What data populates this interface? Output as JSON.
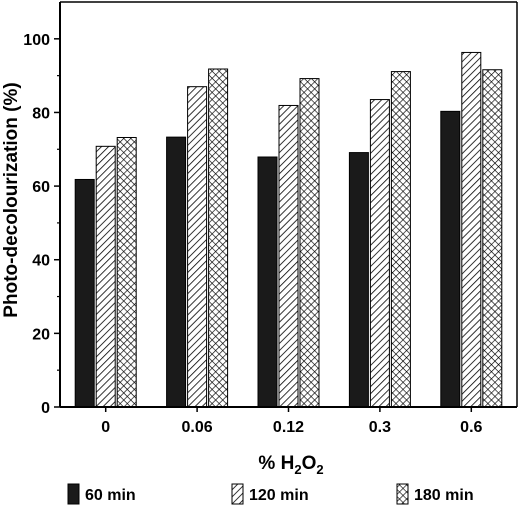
{
  "chart_data": {
    "type": "bar",
    "ylabel": "Photo-decolourization (%)",
    "xlabel": {
      "prefix": "% H",
      "sub1": "2",
      "mid": "O",
      "sub2": "2"
    },
    "categories": [
      "0",
      "0.06",
      "0.12",
      "0.3",
      "0.6"
    ],
    "ylim": [
      0,
      110
    ],
    "yticks": [
      0,
      20,
      40,
      60,
      80,
      100
    ],
    "ytick_labels": [
      "0",
      "20",
      "40",
      "60",
      "80",
      "100"
    ],
    "series": [
      {
        "name": "60 min",
        "pattern": "solid",
        "values": [
          61.8,
          73.3,
          67.9,
          69.1,
          80.3
        ]
      },
      {
        "name": "120 min",
        "pattern": "diagonal-hatch",
        "values": [
          70.8,
          87.0,
          81.9,
          83.5,
          96.3
        ]
      },
      {
        "name": "180 min",
        "pattern": "crosshatch",
        "values": [
          73.2,
          91.8,
          89.2,
          91.1,
          91.6
        ]
      }
    ],
    "legend_position": "bottom",
    "grid": false
  }
}
